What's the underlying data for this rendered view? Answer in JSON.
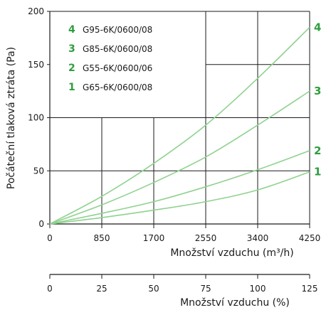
{
  "colors": {
    "curve": "#8fd28f",
    "label": "#2e9e3e",
    "axis": "#1a1a1a",
    "grid": "#1a1a1a"
  },
  "chart_data": {
    "type": "line",
    "x_label": "Množství vzduchu (m³/h)",
    "y_label": "Počáteční tlaková ztráta (Pa)",
    "x2_label": "Množství vzduchu (%)",
    "xlim": [
      0,
      4250
    ],
    "ylim": [
      0,
      200
    ],
    "x_ticks": [
      "0",
      "850",
      "1700",
      "2550",
      "3400",
      "4250"
    ],
    "y_ticks": [
      "0",
      "50",
      "100",
      "150",
      "200"
    ],
    "x2_ticks": [
      "0",
      "25",
      "50",
      "75",
      "100",
      "125"
    ],
    "x2_lim": [
      0,
      125
    ],
    "grid": true,
    "legend_position": "top-left",
    "series": [
      {
        "label": "4",
        "name": "G95-6K/0600/08",
        "x": [
          0,
          850,
          1700,
          2550,
          3400,
          4250
        ],
        "y": [
          0,
          26,
          57,
          93,
          137,
          185
        ]
      },
      {
        "label": "3",
        "name": "G85-6K/0600/08",
        "x": [
          0,
          850,
          1700,
          2550,
          3400,
          4250
        ],
        "y": [
          0,
          18,
          39,
          63,
          93,
          125
        ]
      },
      {
        "label": "2",
        "name": "G55-6K/0600/06",
        "x": [
          0,
          850,
          1700,
          2550,
          3400,
          4250
        ],
        "y": [
          0,
          10,
          21,
          35,
          51,
          69
        ]
      },
      {
        "label": "1",
        "name": "G65-6K/0600/08",
        "x": [
          0,
          850,
          1700,
          2550,
          3400,
          4250
        ],
        "y": [
          0,
          6,
          13,
          21,
          32,
          49
        ]
      }
    ]
  }
}
